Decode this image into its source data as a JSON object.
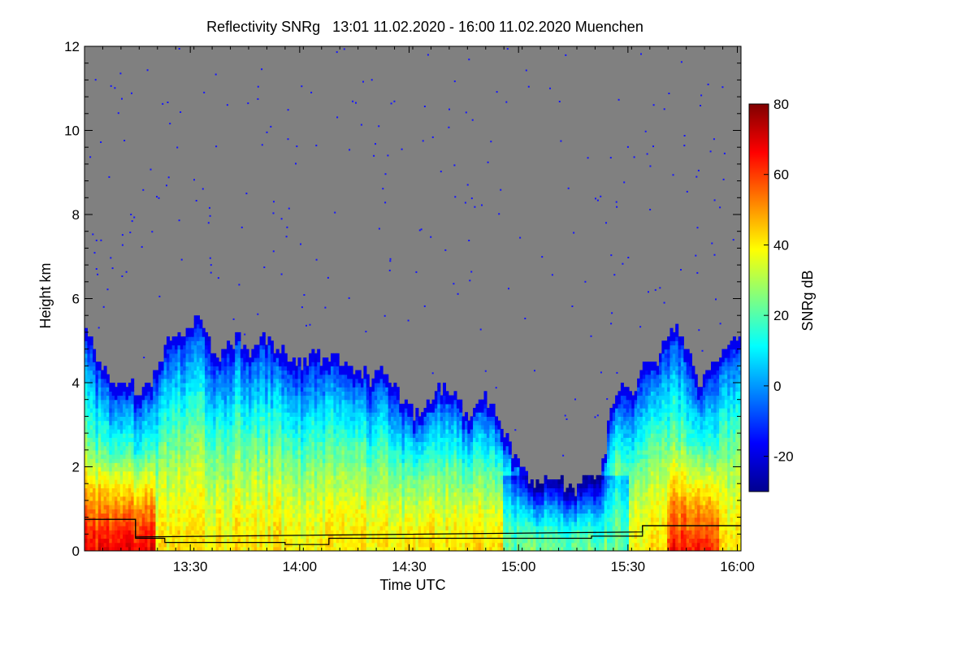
{
  "chart_data": {
    "type": "heatmap",
    "title": "Reflectivity SNRg   13:01 11.02.2020 - 16:00 11.02.2020 Muenchen",
    "xlabel": "Time UTC",
    "ylabel": "Height km",
    "colorbar_label": "SNRg dB",
    "x_range_minutes_utc": [
      781,
      961
    ],
    "y_range_km": [
      0,
      12
    ],
    "x_ticks": [
      {
        "label": "13:30",
        "minutes": 810
      },
      {
        "label": "14:00",
        "minutes": 840
      },
      {
        "label": "14:30",
        "minutes": 870
      },
      {
        "label": "15:00",
        "minutes": 900
      },
      {
        "label": "15:30",
        "minutes": 930
      },
      {
        "label": "16:00",
        "minutes": 960
      }
    ],
    "y_ticks": [
      {
        "label": "0",
        "value": 0
      },
      {
        "label": "2",
        "value": 2
      },
      {
        "label": "4",
        "value": 4
      },
      {
        "label": "6",
        "value": 6
      },
      {
        "label": "8",
        "value": 8
      },
      {
        "label": "10",
        "value": 10
      },
      {
        "label": "12",
        "value": 12
      }
    ],
    "colorbar_range_db": [
      -30,
      80
    ],
    "colorbar_ticks": [
      {
        "label": "-20",
        "value": -20
      },
      {
        "label": "0",
        "value": 0
      },
      {
        "label": "20",
        "value": 20
      },
      {
        "label": "40",
        "value": 40
      },
      {
        "label": "60",
        "value": 60
      },
      {
        "label": "80",
        "value": 80
      }
    ],
    "no_signal_color": "#808080",
    "colormap": [
      "#00008f",
      "#0000ff",
      "#0080ff",
      "#00ffff",
      "#80ff80",
      "#ffff00",
      "#ff8000",
      "#ff0000",
      "#800000"
    ],
    "cloud_top_km": [
      {
        "minutes": 781,
        "top": 5.4
      },
      {
        "minutes": 784,
        "top": 4.6
      },
      {
        "minutes": 787,
        "top": 4.2
      },
      {
        "minutes": 790,
        "top": 3.9
      },
      {
        "minutes": 793,
        "top": 4.0
      },
      {
        "minutes": 796,
        "top": 3.6
      },
      {
        "minutes": 799,
        "top": 4.0
      },
      {
        "minutes": 802,
        "top": 4.6
      },
      {
        "minutes": 805,
        "top": 5.2
      },
      {
        "minutes": 808,
        "top": 5.0
      },
      {
        "minutes": 811,
        "top": 5.5
      },
      {
        "minutes": 814,
        "top": 5.2
      },
      {
        "minutes": 817,
        "top": 4.5
      },
      {
        "minutes": 820,
        "top": 4.8
      },
      {
        "minutes": 823,
        "top": 5.0
      },
      {
        "minutes": 826,
        "top": 4.5
      },
      {
        "minutes": 829,
        "top": 5.1
      },
      {
        "minutes": 832,
        "top": 4.9
      },
      {
        "minutes": 835,
        "top": 4.7
      },
      {
        "minutes": 838,
        "top": 4.5
      },
      {
        "minutes": 841,
        "top": 4.4
      },
      {
        "minutes": 844,
        "top": 4.6
      },
      {
        "minutes": 847,
        "top": 4.5
      },
      {
        "minutes": 850,
        "top": 4.6
      },
      {
        "minutes": 853,
        "top": 4.2
      },
      {
        "minutes": 856,
        "top": 4.3
      },
      {
        "minutes": 859,
        "top": 4.0
      },
      {
        "minutes": 862,
        "top": 4.2
      },
      {
        "minutes": 865,
        "top": 3.9
      },
      {
        "minutes": 868,
        "top": 3.5
      },
      {
        "minutes": 871,
        "top": 3.2
      },
      {
        "minutes": 874,
        "top": 3.3
      },
      {
        "minutes": 877,
        "top": 3.8
      },
      {
        "minutes": 880,
        "top": 3.9
      },
      {
        "minutes": 883,
        "top": 3.6
      },
      {
        "minutes": 886,
        "top": 3.0
      },
      {
        "minutes": 889,
        "top": 3.6
      },
      {
        "minutes": 892,
        "top": 3.5
      },
      {
        "minutes": 895,
        "top": 3.0
      },
      {
        "minutes": 898,
        "top": 2.2
      },
      {
        "minutes": 901,
        "top": 1.9
      },
      {
        "minutes": 904,
        "top": 1.5
      },
      {
        "minutes": 907,
        "top": 1.6
      },
      {
        "minutes": 910,
        "top": 1.7
      },
      {
        "minutes": 913,
        "top": 1.5
      },
      {
        "minutes": 916,
        "top": 1.4
      },
      {
        "minutes": 919,
        "top": 1.7
      },
      {
        "minutes": 922,
        "top": 1.6
      },
      {
        "minutes": 925,
        "top": 3.3
      },
      {
        "minutes": 928,
        "top": 3.9
      },
      {
        "minutes": 931,
        "top": 3.6
      },
      {
        "minutes": 934,
        "top": 4.5
      },
      {
        "minutes": 937,
        "top": 4.4
      },
      {
        "minutes": 940,
        "top": 4.9
      },
      {
        "minutes": 943,
        "top": 5.2
      },
      {
        "minutes": 946,
        "top": 4.8
      },
      {
        "minutes": 949,
        "top": 3.9
      },
      {
        "minutes": 952,
        "top": 4.3
      },
      {
        "minutes": 955,
        "top": 4.5
      },
      {
        "minutes": 958,
        "top": 4.8
      },
      {
        "minutes": 961,
        "top": 5.0
      }
    ],
    "boundary_layer_line_km": [
      {
        "minutes": 781,
        "height": 0.75
      },
      {
        "minutes": 795,
        "height": 0.75
      },
      {
        "minutes": 795,
        "height": 0.3
      },
      {
        "minutes": 803,
        "height": 0.3
      },
      {
        "minutes": 803,
        "height": 0.2
      },
      {
        "minutes": 836,
        "height": 0.2
      },
      {
        "minutes": 836,
        "height": 0.15
      },
      {
        "minutes": 848,
        "height": 0.15
      },
      {
        "minutes": 848,
        "height": 0.3
      },
      {
        "minutes": 920,
        "height": 0.3
      },
      {
        "minutes": 920,
        "height": 0.35
      },
      {
        "minutes": 934,
        "height": 0.35
      },
      {
        "minutes": 934,
        "height": 0.6
      },
      {
        "minutes": 961,
        "height": 0.6
      }
    ],
    "upper_line_km": [
      {
        "minutes": 781,
        "height": 0.75
      },
      {
        "minutes": 795,
        "height": 0.75
      },
      {
        "minutes": 795,
        "height": 0.33
      },
      {
        "minutes": 934,
        "height": 0.45
      },
      {
        "minutes": 934,
        "height": 0.6
      },
      {
        "minutes": 961,
        "height": 0.6
      }
    ]
  }
}
